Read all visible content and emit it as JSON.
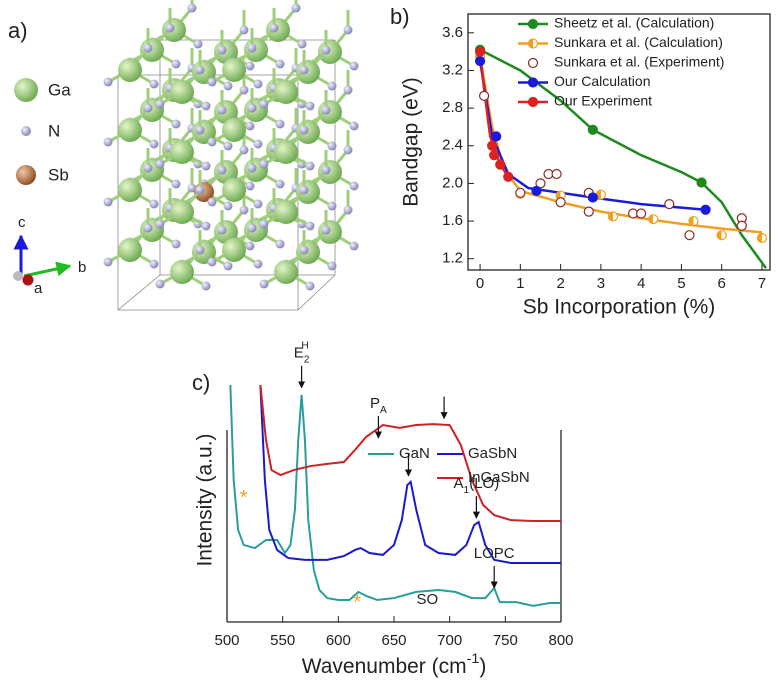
{
  "panel_a": {
    "label": "a)",
    "atoms": [
      "Ga",
      "N",
      "Sb"
    ],
    "axes": [
      "c",
      "b",
      "a"
    ]
  },
  "chart_data": [
    {
      "type": "scatter",
      "label": "b)",
      "xlabel": "Sb Incorporation (%)",
      "ylabel": "Bandgap (eV)",
      "xlim": [
        -0.3,
        7.2
      ],
      "ylim": [
        1.08,
        3.8
      ],
      "xticks": [
        0,
        1,
        2,
        3,
        4,
        5,
        6,
        7
      ],
      "yticks": [
        1.2,
        1.6,
        {
          "value": 2,
          "label": "2.0"
        },
        2.4,
        2.8,
        3.2,
        3.6
      ],
      "legend": "upper right",
      "series": [
        {
          "name": "Sheetz et al. (Calculation)",
          "color": "#1e8a1e",
          "marker": "filled",
          "x": [
            0,
            2.8,
            5.5
          ],
          "values": [
            3.42,
            2.57,
            2.01
          ],
          "fit_x": [
            0,
            1,
            2,
            2.8,
            4,
            5,
            5.5,
            6,
            6.5,
            7.1
          ],
          "fit_values": [
            3.42,
            3.2,
            2.88,
            2.57,
            2.3,
            2.12,
            2.01,
            1.8,
            1.45,
            1.1
          ]
        },
        {
          "name": "Sunkara et al. (Calculation)",
          "color": "#f0a020",
          "marker": "half",
          "x": [
            0,
            1,
            2,
            3,
            3.3,
            4.3,
            5.3,
            6,
            7
          ],
          "values": [
            3.35,
            1.89,
            1.87,
            1.88,
            1.65,
            1.62,
            1.6,
            1.45,
            1.42
          ],
          "fit_x": [
            0,
            0.3,
            0.6,
            1,
            2,
            3,
            4,
            5,
            6,
            7
          ],
          "fit_values": [
            3.35,
            2.6,
            2.15,
            1.92,
            1.8,
            1.7,
            1.63,
            1.57,
            1.52,
            1.48
          ]
        },
        {
          "name": "Sunkara et al. (Experiment)",
          "color": "#8b2a2a",
          "marker": "open",
          "x": [
            0.1,
            1,
            1.5,
            1.7,
            1.9,
            2,
            2.7,
            2.7,
            3.8,
            4,
            4.7,
            5.2,
            6.5,
            6.5
          ],
          "values": [
            2.93,
            1.9,
            2.0,
            2.1,
            2.1,
            1.8,
            1.7,
            1.9,
            1.68,
            1.68,
            1.78,
            1.45,
            1.63,
            1.55
          ]
        },
        {
          "name": "Our Calculation",
          "color": "#1a1adc",
          "marker": "filled",
          "x": [
            0,
            0.4,
            1.4,
            2.8,
            5.6
          ],
          "values": [
            3.3,
            2.5,
            1.92,
            1.85,
            1.72
          ],
          "fit_x": [
            0,
            0.3,
            0.7,
            1.2,
            2.8,
            4,
            5.6
          ],
          "fit_values": [
            3.3,
            2.5,
            2.1,
            1.95,
            1.85,
            1.78,
            1.72
          ]
        },
        {
          "name": "Our Experiment",
          "color": "#dd2020",
          "marker": "filled",
          "x": [
            0,
            0.3,
            0.35,
            0.5,
            0.7
          ],
          "values": [
            3.4,
            2.4,
            2.3,
            2.2,
            2.07
          ],
          "fit_x": [
            0,
            0.1,
            0.25,
            0.5,
            0.7
          ],
          "fit_values": [
            3.4,
            3.0,
            2.5,
            2.2,
            2.07
          ]
        }
      ]
    },
    {
      "type": "line",
      "label": "c)",
      "xlabel": {
        "text": "Wavenumber (cm",
        "sup": "-1",
        "after": ")"
      },
      "ylabel": "Intensity (a.u.)",
      "xlim": [
        500,
        800
      ],
      "ylim": [
        0,
        100
      ],
      "xticks": [
        500,
        550,
        600,
        650,
        700,
        750,
        800
      ],
      "legend": "upper right",
      "series": [
        {
          "name": "GaN",
          "color": "#2a9d9d",
          "x": [
            503,
            506,
            510,
            515,
            525,
            535,
            545,
            552,
            557,
            561,
            564,
            567,
            570,
            573,
            578,
            583,
            590,
            600,
            610,
            618,
            625,
            635,
            650,
            670,
            690,
            705,
            720,
            732,
            740,
            745,
            760,
            775,
            790,
            800
          ],
          "values": [
            100,
            59.9,
            38.8,
            32.5,
            31.2,
            34.6,
            34.6,
            29.1,
            32.5,
            47.3,
            76.8,
            95.8,
            76.8,
            43.0,
            21.9,
            13.5,
            10.1,
            9.3,
            9.3,
            12.7,
            11.0,
            9.3,
            10.1,
            12.7,
            13.5,
            12.7,
            10.1,
            10.1,
            14.3,
            8.4,
            8.4,
            6.8,
            8.0,
            8.0
          ]
        },
        {
          "name": "GaSbN",
          "color": "#1a1acc",
          "x": [
            530,
            534,
            538,
            545,
            555,
            570,
            590,
            605,
            615,
            620,
            628,
            640,
            650,
            657,
            662,
            665,
            670,
            678,
            690,
            705,
            715,
            722,
            726,
            732,
            740,
            755,
            775,
            800
          ],
          "values": [
            100,
            59.9,
            38.8,
            30.4,
            27.0,
            26.2,
            26.2,
            27.8,
            30.4,
            31.2,
            29.1,
            28.3,
            32.5,
            43.0,
            57.8,
            59.1,
            47.3,
            32.5,
            29.1,
            28.3,
            32.5,
            40.9,
            42.2,
            32.5,
            26.2,
            24.9,
            24.9,
            24.9
          ]
        },
        {
          "name": "InGaSbN",
          "color": "#cc2222",
          "x": [
            530,
            535,
            540,
            548,
            560,
            575,
            590,
            605,
            615,
            625,
            640,
            655,
            670,
            685,
            700,
            710,
            720,
            730,
            740,
            755,
            775,
            800
          ],
          "values": [
            100,
            76.8,
            64.1,
            62.0,
            64.1,
            65.8,
            66.7,
            67.5,
            72.6,
            78.1,
            83.1,
            81.9,
            83.1,
            83.5,
            83.1,
            74.7,
            59.9,
            49.4,
            45.1,
            43.0,
            42.6,
            42.6
          ]
        }
      ],
      "annotations": [
        {
          "label": {
            "text": "E",
            "sub": "2",
            "sup": "H"
          },
          "x": 567,
          "y": 98,
          "arrow": true
        },
        {
          "label": {
            "text": "P",
            "sub": "A"
          },
          "x": 636,
          "y": 76.8,
          "arrow": true
        },
        {
          "x": 695,
          "y": 85,
          "arrow": true
        },
        {
          "x": 663,
          "y": 60.8,
          "arrow": true
        },
        {
          "label": {
            "text": "A",
            "sub": "1",
            "after": "(LO)"
          },
          "x": 724,
          "y": 43,
          "arrow": true
        },
        {
          "label": "LOPC",
          "x": 740,
          "y": 13.5,
          "arrow": true
        },
        {
          "label": "SO",
          "x": 680,
          "y": 9.3
        },
        {
          "label": "*",
          "x": 515,
          "y": 52,
          "color": "#f0a020"
        },
        {
          "label": "*",
          "x": 617,
          "y": 8,
          "color": "#f0a020"
        }
      ]
    }
  ]
}
